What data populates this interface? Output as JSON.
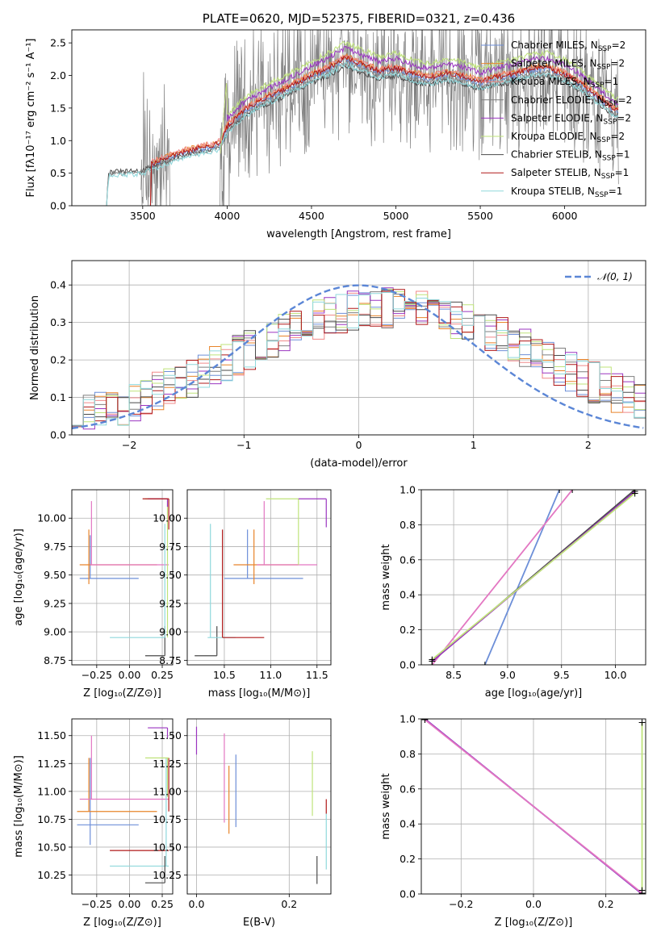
{
  "colors": {
    "Chabrier MILES": "#6d8fd8",
    "Salpeter MILES": "#e8842a",
    "Kroupa MILES": "#f08a8a",
    "Chabrier ELODIE": "#7f7f7f",
    "Salpeter ELODIE": "#9b35c0",
    "Kroupa ELODIE": "#bfe37a",
    "Chabrier STELIB": "#4a4a4a",
    "Salpeter STELIB": "#b01818",
    "Kroupa STELIB": "#8fd8dc",
    "pink": "#e377c2",
    "normal": "#5b86d6"
  },
  "chart_data": [
    {
      "type": "line",
      "title": "PLATE=0620, MJD=52375, FIBERID=0321, z=0.436",
      "xlabel": "wavelength [Angstrom, rest frame]",
      "ylabel": "Flux [fλ10⁻¹⁷ erg cm⁻² s⁻¹ A⁻¹]",
      "xlim": [
        3080,
        6480
      ],
      "ylim": [
        0,
        2.7
      ],
      "xticks": [
        "3500",
        "4000",
        "4500",
        "5000",
        "5500",
        "6000"
      ],
      "yticks": [
        "0.0",
        "0.5",
        "1.0",
        "1.5",
        "2.0",
        "2.5"
      ],
      "grid": false,
      "legend_position": "top-right",
      "legend": [
        {
          "name": "Chabrier MILES",
          "label": "Chabrier MILES, N",
          "sub": "SSP",
          "suffix": "=2"
        },
        {
          "name": "Salpeter MILES",
          "label": "Salpeter MILES, N",
          "sub": "SSP",
          "suffix": "=2"
        },
        {
          "name": "Kroupa MILES",
          "label": "Kroupa MILES, N",
          "sub": "SSP",
          "suffix": "=1"
        },
        {
          "name": "Chabrier ELODIE",
          "label": "Chabrier ELODIE, N",
          "sub": "SSP",
          "suffix": "=2"
        },
        {
          "name": "Salpeter ELODIE",
          "label": "Salpeter ELODIE, N",
          "sub": "SSP",
          "suffix": "=2"
        },
        {
          "name": "Kroupa ELODIE",
          "label": "Kroupa ELODIE, N",
          "sub": "SSP",
          "suffix": "=2"
        },
        {
          "name": "Chabrier STELIB",
          "label": "Chabrier STELIB, N",
          "sub": "SSP",
          "suffix": "=1"
        },
        {
          "name": "Salpeter STELIB",
          "label": "Salpeter STELIB, N",
          "sub": "SSP",
          "suffix": "=1"
        },
        {
          "name": "Kroupa STELIB",
          "label": "Kroupa STELIB, N",
          "sub": "SSP",
          "suffix": "=1"
        }
      ],
      "model_profile": {
        "x": [
          3280,
          3300,
          3400,
          3500,
          3600,
          3700,
          3800,
          3900,
          3960,
          4000,
          4100,
          4200,
          4300,
          4400,
          4500,
          4600,
          4700,
          4800,
          4900,
          5000,
          5100,
          5200,
          5300,
          5400,
          5500,
          5600,
          5700,
          5800,
          5900,
          6000,
          6100,
          6200,
          6300
        ],
        "y": [
          0.0,
          0.55,
          0.55,
          0.57,
          0.68,
          0.78,
          0.85,
          0.9,
          0.95,
          1.2,
          1.45,
          1.6,
          1.72,
          1.85,
          1.98,
          2.1,
          2.25,
          2.15,
          2.05,
          2.1,
          2.0,
          1.95,
          2.02,
          1.97,
          1.88,
          1.96,
          2.0,
          2.08,
          2.1,
          2.0,
          1.85,
          1.65,
          1.45
        ]
      }
    },
    {
      "type": "line",
      "xlabel": "(data-model)/error",
      "ylabel": "Normed distribution",
      "xlim": [
        -2.5,
        2.5
      ],
      "ylim": [
        0,
        0.465
      ],
      "xticks": [
        "−2",
        "−1",
        "0",
        "1",
        "2"
      ],
      "yticks": [
        "0.0",
        "0.1",
        "0.2",
        "0.3",
        "0.4"
      ],
      "grid": true,
      "legend_position": "top-right",
      "legend": [
        {
          "name": "normal",
          "label": "𝒩(0, 1)"
        }
      ],
      "series": [
        {
          "name": "normal",
          "style": "dashed",
          "mean": 0,
          "sigma": 1
        }
      ],
      "histogram_bin_width": 0.1
    },
    {
      "type": "line",
      "xlabel": "Z [log₁₀(Z/Z⊙)]",
      "ylabel": "age  [log₁₀(age/yr)]",
      "xlim": [
        -0.44,
        0.33
      ],
      "ylim": [
        8.71,
        10.25
      ],
      "xticks": [
        "−0.25",
        "0.00",
        "0.25"
      ],
      "yticks": [
        "8.75",
        "9.00",
        "9.25",
        "9.50",
        "9.75",
        "10.00"
      ],
      "grid": true,
      "segments": [
        {
          "color": "Chabrier MILES",
          "h": [
            9.47,
            -0.38,
            0.07
          ],
          "v": [
            -0.3,
            9.47,
            9.85
          ]
        },
        {
          "color": "Salpeter MILES",
          "h": [
            9.59,
            -0.38,
            0.21
          ],
          "v": [
            -0.31,
            9.42,
            9.9
          ]
        },
        {
          "color": "pink",
          "h": [
            9.59,
            -0.3,
            0.3
          ],
          "v": [
            -0.29,
            9.59,
            10.15
          ]
        },
        {
          "color": "Chabrier STELIB",
          "h": [
            8.79,
            0.12,
            0.27
          ],
          "v": [
            0.27,
            8.79,
            9.05
          ]
        },
        {
          "color": "Kroupa STELIB",
          "h": [
            8.95,
            -0.15,
            0.27
          ],
          "v": [
            0.27,
            8.95,
            9.95
          ]
        },
        {
          "color": "Kroupa ELODIE",
          "h": [
            10.17,
            0.12,
            0.3
          ],
          "v": [
            0.29,
            8.95,
            10.17
          ]
        },
        {
          "color": "Salpeter ELODIE",
          "h": [
            10.17,
            0.14,
            0.29
          ],
          "v": [
            0.29,
            10.1,
            10.17
          ]
        },
        {
          "color": "Salpeter STELIB",
          "h": [
            10.17,
            0.1,
            0.3
          ],
          "v": [
            0.3,
            9.9,
            10.17
          ]
        }
      ]
    },
    {
      "type": "line",
      "xlabel": "mass [log₁₀(M/M⊙)]",
      "ylabel": "",
      "xlim": [
        10.1,
        11.65
      ],
      "ylim": [
        8.71,
        10.25
      ],
      "xticks": [
        "10.5",
        "11.0",
        "11.5"
      ],
      "yticks": [
        "8.75",
        "9.00",
        "9.25",
        "9.50",
        "9.75",
        "10.00"
      ],
      "grid": true,
      "segments": [
        {
          "color": "Chabrier STELIB",
          "h": [
            8.79,
            10.18,
            10.42
          ],
          "v": [
            10.42,
            8.79,
            9.05
          ]
        },
        {
          "color": "Kroupa STELIB",
          "h": [
            8.95,
            10.32,
            10.62
          ],
          "v": [
            10.35,
            8.95,
            9.95
          ]
        },
        {
          "color": "Salpeter STELIB",
          "h": [
            8.95,
            10.48,
            10.93
          ],
          "v": [
            10.48,
            8.95,
            9.9
          ]
        },
        {
          "color": "Chabrier MILES",
          "h": [
            9.47,
            10.5,
            11.35
          ],
          "v": [
            10.75,
            9.47,
            9.9
          ]
        },
        {
          "color": "Salpeter MILES",
          "h": [
            9.59,
            10.6,
            11.3
          ],
          "v": [
            10.82,
            9.42,
            9.9
          ]
        },
        {
          "color": "pink",
          "h": [
            9.59,
            10.85,
            11.5
          ],
          "v": [
            10.93,
            9.59,
            10.15
          ]
        },
        {
          "color": "Kroupa ELODIE",
          "h": [
            10.17,
            10.95,
            11.3
          ],
          "v": [
            11.3,
            9.59,
            10.17
          ]
        },
        {
          "color": "Salpeter ELODIE",
          "h": [
            10.17,
            11.3,
            11.6
          ],
          "v": [
            11.6,
            9.92,
            10.17
          ]
        }
      ]
    },
    {
      "type": "line",
      "xlabel": "age  [log₁₀(age/yr)]",
      "ylabel": "mass weight",
      "xlim": [
        8.2,
        10.28
      ],
      "ylim": [
        0,
        1
      ],
      "xticks": [
        "8.5",
        "9.0",
        "9.5",
        "10.0"
      ],
      "yticks": [
        "0.0",
        "0.2",
        "0.4",
        "0.6",
        "0.8",
        "1.0"
      ],
      "grid": true,
      "lines": [
        {
          "color": "Chabrier MILES",
          "x": [
            8.79,
            9.48
          ],
          "y": [
            0.0,
            1.0
          ]
        },
        {
          "color": "pink",
          "x": [
            8.3,
            9.6
          ],
          "y": [
            0.0,
            1.0
          ]
        },
        {
          "color": "Chabrier STELIB",
          "x": [
            8.3,
            10.18
          ],
          "y": [
            0.02,
            1.0
          ]
        },
        {
          "color": "Salpeter ELODIE",
          "x": [
            8.3,
            10.18
          ],
          "y": [
            0.02,
            0.99
          ]
        },
        {
          "color": "Kroupa ELODIE",
          "x": [
            8.3,
            10.18
          ],
          "y": [
            0.03,
            0.98
          ]
        }
      ]
    },
    {
      "type": "line",
      "xlabel": "Z [log₁₀(Z/Z⊙)]",
      "ylabel": "mass [log₁₀(M/M⊙)]",
      "xlim": [
        -0.44,
        0.33
      ],
      "ylim": [
        10.08,
        11.65
      ],
      "xticks": [
        "−0.25",
        "0.00",
        "0.25"
      ],
      "yticks": [
        "10.25",
        "10.50",
        "10.75",
        "11.00",
        "11.25",
        "11.50"
      ],
      "grid": true,
      "segments": [
        {
          "color": "Chabrier MILES",
          "h": [
            10.7,
            -0.4,
            0.07
          ],
          "v": [
            -0.3,
            10.52,
            11.3
          ]
        },
        {
          "color": "Salpeter MILES",
          "h": [
            10.82,
            -0.4,
            0.21
          ],
          "v": [
            -0.31,
            10.82,
            11.3
          ]
        },
        {
          "color": "pink",
          "h": [
            10.93,
            -0.38,
            0.3
          ],
          "v": [
            -0.29,
            10.93,
            11.5
          ]
        },
        {
          "color": "Salpeter STELIB",
          "h": [
            10.47,
            -0.15,
            0.3
          ],
          "v": [
            0.3,
            10.82,
            11.3
          ]
        },
        {
          "color": "Kroupa STELIB",
          "h": [
            10.33,
            -0.15,
            0.3
          ],
          "v": [
            0.28,
            10.33,
            11.3
          ]
        },
        {
          "color": "Chabrier STELIB",
          "h": [
            10.18,
            0.12,
            0.27
          ],
          "v": [
            0.27,
            10.18,
            10.42
          ]
        },
        {
          "color": "Kroupa ELODIE",
          "h": [
            11.3,
            0.12,
            0.3
          ],
          "v": [
            0.29,
            10.95,
            11.3
          ]
        },
        {
          "color": "Salpeter ELODIE",
          "h": [
            11.57,
            0.14,
            0.29
          ],
          "v": [
            0.29,
            11.48,
            11.57
          ]
        }
      ]
    },
    {
      "type": "line",
      "xlabel": "E(B-V)",
      "ylabel": "",
      "xlim": [
        -0.02,
        0.29
      ],
      "ylim": [
        10.08,
        11.65
      ],
      "xticks": [
        "0.0",
        "0.2"
      ],
      "yticks": [
        "10.25",
        "10.50",
        "10.75",
        "11.00",
        "11.25",
        "11.50"
      ],
      "grid": true,
      "vlines": [
        {
          "color": "Salpeter ELODIE",
          "x": 0.0,
          "y": [
            11.33,
            11.58
          ]
        },
        {
          "color": "pink",
          "x": 0.06,
          "y": [
            10.72,
            11.52
          ]
        },
        {
          "color": "Salpeter MILES",
          "x": 0.07,
          "y": [
            10.62,
            11.23
          ]
        },
        {
          "color": "Chabrier MILES",
          "x": 0.085,
          "y": [
            10.68,
            11.33
          ]
        },
        {
          "color": "Kroupa ELODIE",
          "x": 0.25,
          "y": [
            10.78,
            11.36
          ]
        },
        {
          "color": "Chabrier STELIB",
          "x": 0.26,
          "y": [
            10.17,
            10.42
          ]
        },
        {
          "color": "Kroupa STELIB",
          "x": 0.28,
          "y": [
            10.3,
            10.8
          ]
        },
        {
          "color": "Salpeter STELIB",
          "x": 0.28,
          "y": [
            10.8,
            10.93
          ]
        }
      ]
    },
    {
      "type": "line",
      "xlabel": "Z [log₁₀(Z/Z⊙)]",
      "ylabel": "mass weight",
      "xlim": [
        -0.31,
        0.31
      ],
      "ylim": [
        0,
        1
      ],
      "xticks": [
        "−0.2",
        "0.0",
        "0.2"
      ],
      "yticks": [
        "0.0",
        "0.2",
        "0.4",
        "0.6",
        "0.8",
        "1.0"
      ],
      "grid": true,
      "lines": [
        {
          "color": "Chabrier MILES",
          "x": [
            -0.3,
            0.3
          ],
          "y": [
            1.0,
            0.0
          ]
        },
        {
          "color": "Salpeter ELODIE",
          "x": [
            -0.3,
            0.3
          ],
          "y": [
            1.0,
            0.0
          ]
        },
        {
          "color": "pink",
          "x": [
            -0.3,
            0.3
          ],
          "y": [
            0.995,
            0.005
          ]
        },
        {
          "color": "Kroupa ELODIE",
          "x": [
            0.3,
            0.3
          ],
          "y": [
            0.02,
            0.98
          ]
        }
      ]
    }
  ]
}
